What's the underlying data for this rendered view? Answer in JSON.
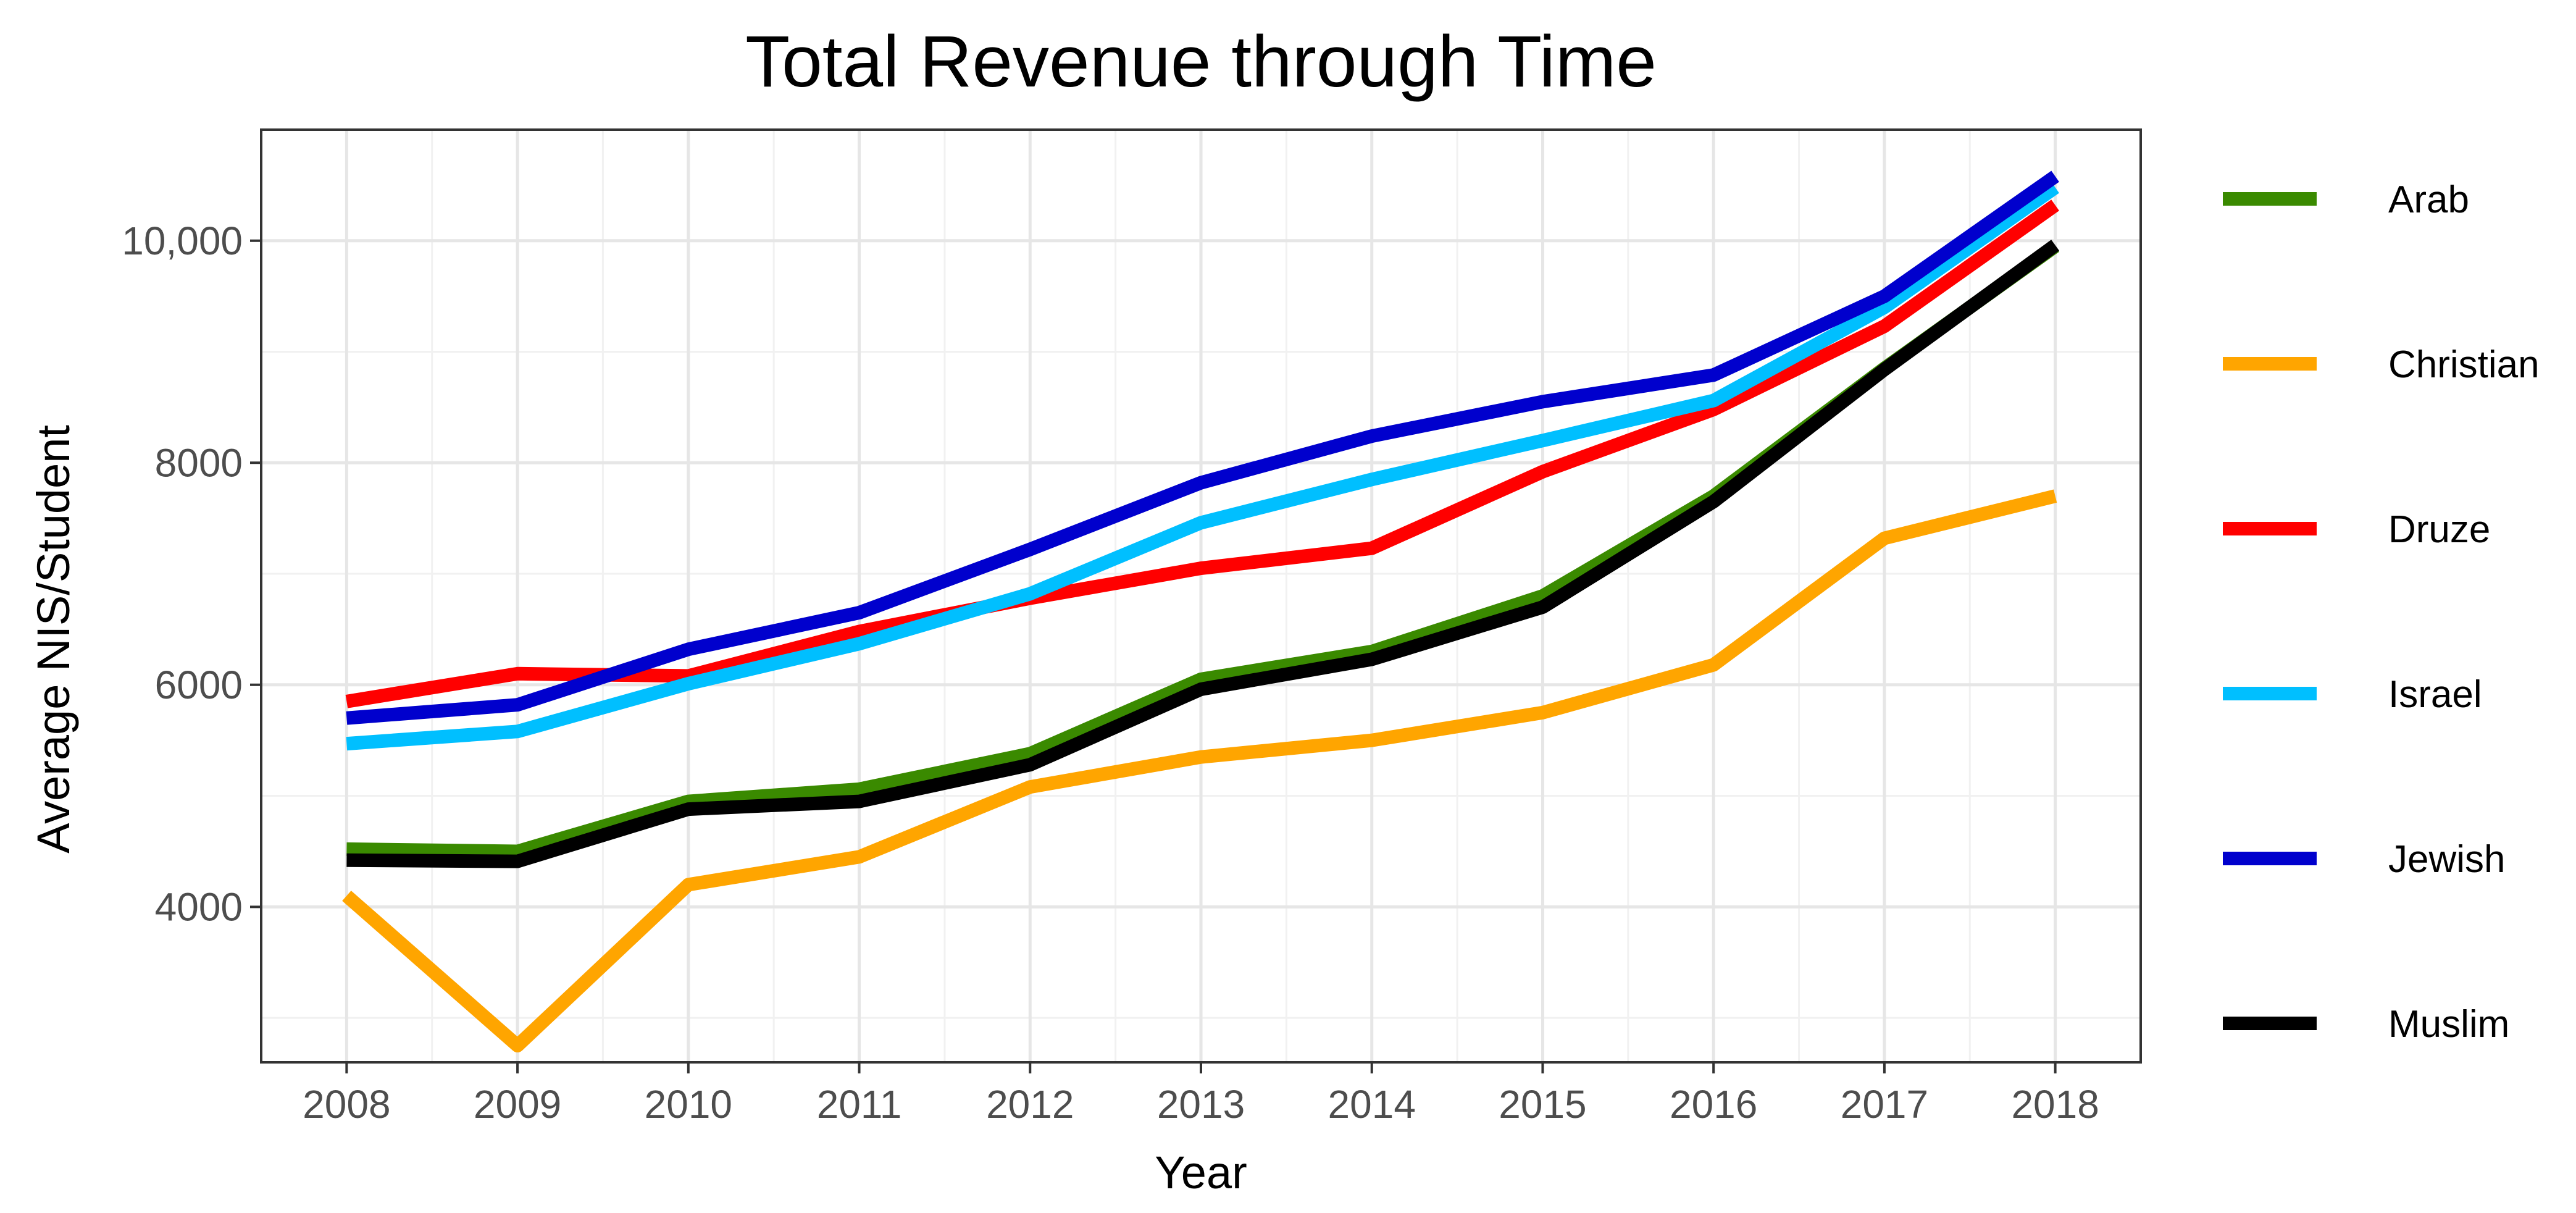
{
  "chart_data": {
    "type": "line",
    "title": "Total Revenue through Time",
    "xlabel": "Year",
    "ylabel": "Average NIS/Student",
    "x": [
      2008,
      2009,
      2010,
      2011,
      2012,
      2013,
      2014,
      2015,
      2016,
      2017,
      2018
    ],
    "x_tick_labels": [
      "2008",
      "2009",
      "2010",
      "2011",
      "2012",
      "2013",
      "2014",
      "2015",
      "2016",
      "2017",
      "2018"
    ],
    "xlim": [
      2007.5,
      2018.5
    ],
    "ylim": [
      2600,
      11000
    ],
    "y_ticks": [
      4000,
      6000,
      8000,
      10000
    ],
    "y_tick_labels": [
      "4000",
      "6000",
      "8000",
      "10,000"
    ],
    "grid": true,
    "legend_position": "right",
    "series": [
      {
        "name": "Arab",
        "color": "#3a8a00",
        "values": [
          4520,
          4500,
          4950,
          5060,
          5380,
          6050,
          6300,
          6800,
          7700,
          8850,
          9950
        ]
      },
      {
        "name": "Christian",
        "color": "#ffa500",
        "values": [
          4100,
          2750,
          4200,
          4450,
          5080,
          5350,
          5500,
          5750,
          6180,
          7320,
          7700
        ]
      },
      {
        "name": "Druze",
        "color": "#ff0000",
        "values": [
          5850,
          6100,
          6080,
          6480,
          6780,
          7050,
          7230,
          7920,
          8480,
          9230,
          10320
        ]
      },
      {
        "name": "Israel",
        "color": "#00bfff",
        "values": [
          5470,
          5580,
          6010,
          6370,
          6820,
          7460,
          7850,
          8200,
          8560,
          9400,
          10480
        ]
      },
      {
        "name": "Jewish",
        "color": "#0000cd",
        "values": [
          5700,
          5820,
          6320,
          6650,
          7220,
          7820,
          8240,
          8550,
          8790,
          9500,
          10580
        ]
      },
      {
        "name": "Muslim",
        "color": "#000000",
        "values": [
          4420,
          4410,
          4880,
          4950,
          5280,
          5960,
          6230,
          6700,
          7650,
          8840,
          9960
        ]
      }
    ]
  }
}
